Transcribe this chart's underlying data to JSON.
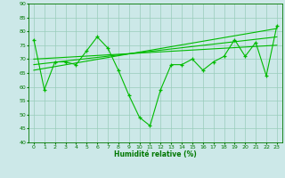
{
  "xlabel": "Humidité relative (%)",
  "bg_color": "#cce8e8",
  "grid_color": "#99ccbb",
  "line_color": "#00bb00",
  "tick_color": "#007700",
  "xlim": [
    -0.5,
    23.5
  ],
  "ylim": [
    40,
    90
  ],
  "yticks": [
    40,
    45,
    50,
    55,
    60,
    65,
    70,
    75,
    80,
    85,
    90
  ],
  "xticks": [
    0,
    1,
    2,
    3,
    4,
    5,
    6,
    7,
    8,
    9,
    10,
    11,
    12,
    13,
    14,
    15,
    16,
    17,
    18,
    19,
    20,
    21,
    22,
    23
  ],
  "main_x": [
    0,
    1,
    2,
    3,
    4,
    5,
    6,
    7,
    8,
    9,
    10,
    11,
    12,
    13,
    14,
    15,
    16,
    17,
    18,
    19,
    20,
    21,
    22,
    23
  ],
  "main_y": [
    77,
    59,
    69,
    69,
    68,
    73,
    78,
    74,
    66,
    57,
    49,
    46,
    59,
    68,
    68,
    70,
    66,
    69,
    71,
    77,
    71,
    76,
    64,
    82
  ],
  "trend1_x": [
    0,
    23
  ],
  "trend1_y": [
    70,
    75
  ],
  "trend2_x": [
    0,
    23
  ],
  "trend2_y": [
    68,
    78
  ],
  "trend3_x": [
    0,
    23
  ],
  "trend3_y": [
    66,
    81
  ]
}
